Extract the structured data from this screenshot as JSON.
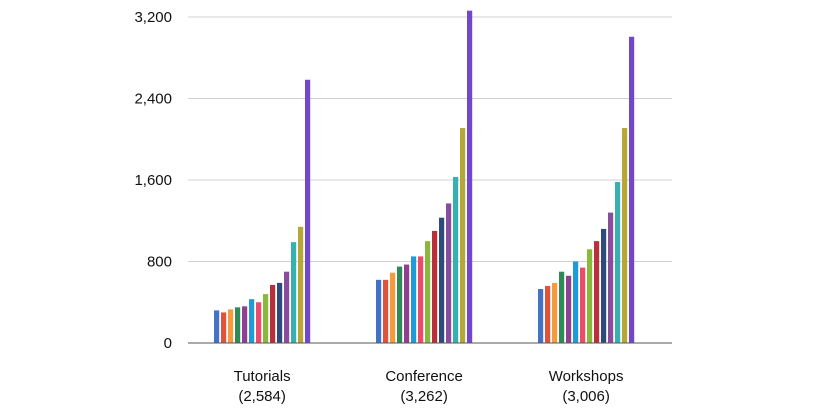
{
  "chart_data": {
    "type": "bar",
    "categories": [
      "Tutorials",
      "Conference",
      "Workshops"
    ],
    "category_totals": [
      "(2,584)",
      "(3,262)",
      "(3,006)"
    ],
    "ylim": [
      0,
      3200
    ],
    "yticks": [
      0,
      800,
      1600,
      2400,
      3200
    ],
    "ytick_labels": [
      "0",
      "800",
      "1,600",
      "2,400",
      "3,200"
    ],
    "grid": true,
    "legend": "none",
    "colors": [
      "#4472c4",
      "#e0533a",
      "#f39c3d",
      "#2e8b57",
      "#8e3f8f",
      "#1f9bd7",
      "#ec4b6a",
      "#8bb83c",
      "#b8303a",
      "#2f4b7c",
      "#8a4d9c",
      "#36b0b0",
      "#b6a739",
      "#7247c9"
    ],
    "values": [
      [
        320,
        300,
        330,
        350,
        360,
        430,
        400,
        480,
        570,
        590,
        700,
        990,
        1140,
        2584
      ],
      [
        620,
        620,
        690,
        750,
        770,
        850,
        850,
        1000,
        1100,
        1230,
        1370,
        1630,
        2110,
        3262
      ],
      [
        530,
        560,
        590,
        700,
        660,
        800,
        740,
        920,
        1000,
        1120,
        1280,
        1580,
        2110,
        3006
      ]
    ]
  }
}
